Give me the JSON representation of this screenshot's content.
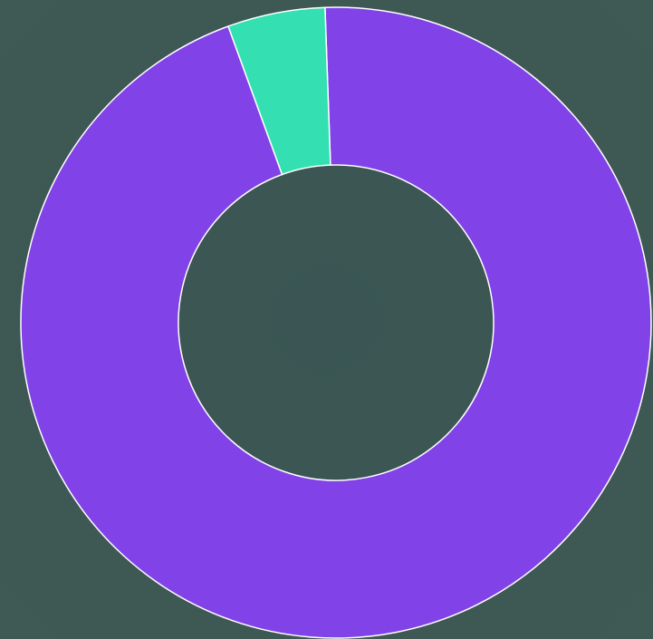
{
  "chart_data": {
    "type": "pie",
    "donut": true,
    "values": [
      95,
      5
    ],
    "colors": [
      "#8142e8",
      "#34e0b1"
    ]
  }
}
